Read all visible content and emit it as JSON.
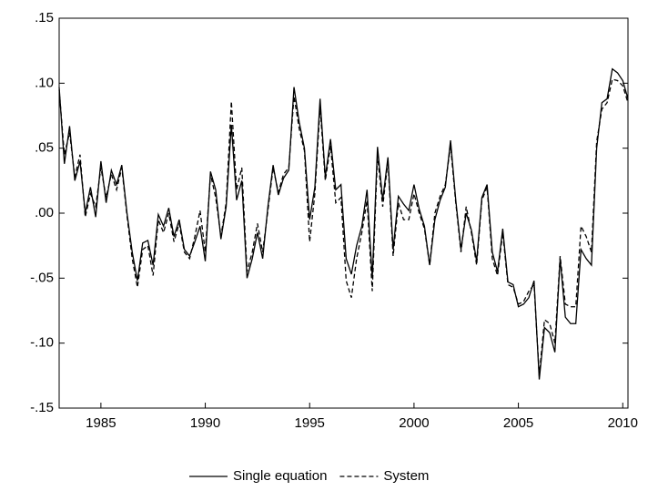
{
  "chart_data": {
    "type": "line",
    "x": [
      1983,
      1983.25,
      1983.5,
      1983.75,
      1984,
      1984.25,
      1984.5,
      1984.75,
      1985,
      1985.25,
      1985.5,
      1985.75,
      1986,
      1986.25,
      1986.5,
      1986.75,
      1987,
      1987.25,
      1987.5,
      1987.75,
      1988,
      1988.25,
      1988.5,
      1988.75,
      1989,
      1989.25,
      1989.5,
      1989.75,
      1990,
      1990.25,
      1990.5,
      1990.75,
      1991,
      1991.25,
      1991.5,
      1991.75,
      1992,
      1992.25,
      1992.5,
      1992.75,
      1993,
      1993.25,
      1993.5,
      1993.75,
      1994,
      1994.25,
      1994.5,
      1994.75,
      1995,
      1995.25,
      1995.5,
      1995.75,
      1996,
      1996.25,
      1996.5,
      1996.75,
      1997,
      1997.25,
      1997.5,
      1997.75,
      1998,
      1998.25,
      1998.5,
      1998.75,
      1999,
      1999.25,
      1999.5,
      1999.75,
      2000,
      2000.25,
      2000.5,
      2000.75,
      2001,
      2001.25,
      2001.5,
      2001.75,
      2002,
      2002.25,
      2002.5,
      2002.75,
      2003,
      2003.25,
      2003.5,
      2003.75,
      2004,
      2004.25,
      2004.5,
      2004.75,
      2005,
      2005.25,
      2005.5,
      2005.75,
      2006,
      2006.25,
      2006.5,
      2006.75,
      2007,
      2007.25,
      2007.5,
      2007.75,
      2008,
      2008.25,
      2008.5,
      2008.75,
      2009,
      2009.25,
      2009.5,
      2009.75,
      2010,
      2010.25
    ],
    "series": [
      {
        "name": "Single equation",
        "color": "#000000",
        "line_style": "solid",
        "values": [
          0.097,
          0.038,
          0.067,
          0.025,
          0.04,
          0.0,
          0.02,
          -0.003,
          0.04,
          0.008,
          0.033,
          0.022,
          0.037,
          0.0,
          -0.03,
          -0.052,
          -0.023,
          -0.021,
          -0.04,
          -0.001,
          -0.01,
          0.004,
          -0.018,
          -0.005,
          -0.028,
          -0.033,
          -0.022,
          -0.01,
          -0.037,
          0.032,
          0.018,
          -0.02,
          0.005,
          0.068,
          0.01,
          0.025,
          -0.05,
          -0.035,
          -0.015,
          -0.035,
          0.005,
          0.037,
          0.014,
          0.027,
          0.033,
          0.097,
          0.07,
          0.05,
          -0.005,
          0.02,
          0.088,
          0.028,
          0.057,
          0.018,
          0.022,
          -0.035,
          -0.047,
          -0.025,
          -0.01,
          0.018,
          -0.05,
          0.051,
          0.01,
          0.043,
          -0.028,
          0.013,
          0.007,
          0.002,
          0.022,
          0.003,
          -0.01,
          -0.04,
          -0.005,
          0.01,
          0.02,
          0.056,
          0.01,
          -0.028,
          0.0,
          -0.013,
          -0.037,
          0.012,
          0.022,
          -0.03,
          -0.045,
          -0.012,
          -0.053,
          -0.055,
          -0.072,
          -0.07,
          -0.065,
          -0.052,
          -0.128,
          -0.088,
          -0.092,
          -0.107,
          -0.035,
          -0.08,
          -0.085,
          -0.085,
          -0.028,
          -0.035,
          -0.04,
          0.05,
          0.085,
          0.088,
          0.111,
          0.108,
          0.102,
          0.088
        ]
      },
      {
        "name": "System",
        "color": "#000000",
        "line_style": "dashed",
        "values": [
          0.095,
          0.045,
          0.062,
          0.028,
          0.045,
          -0.003,
          0.015,
          0.005,
          0.035,
          0.012,
          0.03,
          0.018,
          0.035,
          -0.002,
          -0.035,
          -0.057,
          -0.028,
          -0.025,
          -0.048,
          -0.005,
          -0.015,
          0.0,
          -0.022,
          -0.008,
          -0.03,
          -0.035,
          -0.018,
          0.002,
          -0.03,
          0.03,
          0.012,
          -0.018,
          0.008,
          0.086,
          0.018,
          0.035,
          -0.045,
          -0.03,
          -0.008,
          -0.03,
          0.002,
          0.035,
          0.016,
          0.03,
          0.035,
          0.09,
          0.065,
          0.048,
          -0.022,
          0.015,
          0.082,
          0.025,
          0.052,
          0.008,
          0.012,
          -0.052,
          -0.065,
          -0.035,
          -0.015,
          0.01,
          -0.06,
          0.045,
          0.005,
          0.04,
          -0.033,
          0.008,
          -0.005,
          -0.005,
          0.015,
          0.0,
          -0.012,
          -0.04,
          0.0,
          0.013,
          0.022,
          0.052,
          0.008,
          -0.03,
          0.005,
          -0.015,
          -0.04,
          0.01,
          0.02,
          -0.035,
          -0.048,
          -0.015,
          -0.055,
          -0.057,
          -0.07,
          -0.068,
          -0.06,
          -0.055,
          -0.125,
          -0.082,
          -0.085,
          -0.1,
          -0.033,
          -0.07,
          -0.072,
          -0.072,
          -0.01,
          -0.018,
          -0.03,
          0.055,
          0.08,
          0.085,
          0.103,
          0.102,
          0.098,
          0.085
        ]
      }
    ],
    "xlim": [
      1983,
      2010.25
    ],
    "xticks": [
      1985,
      1990,
      1995,
      2000,
      2005,
      2010
    ],
    "ylim": [
      -0.15,
      0.15
    ],
    "yticks": [
      {
        "value": -0.15,
        "label": "-.15"
      },
      {
        "value": -0.1,
        "label": "-.10"
      },
      {
        "value": -0.05,
        "label": "-.05"
      },
      {
        "value": 0,
        "label": ".00"
      },
      {
        "value": 0.05,
        "label": ".05"
      },
      {
        "value": 0.1,
        "label": ".10"
      },
      {
        "value": 0.15,
        "label": ".15"
      }
    ],
    "grid": false,
    "legend": "bottom"
  }
}
